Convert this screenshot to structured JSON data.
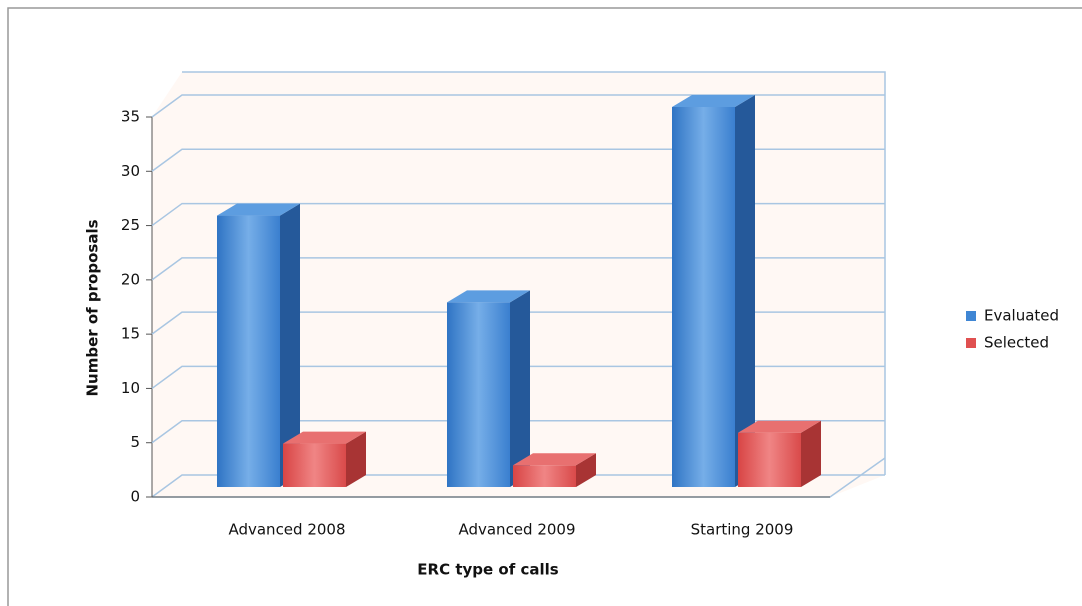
{
  "chart_data": {
    "type": "bar3d",
    "x_label": "ERC type of calls",
    "y_label": "Number of proposals",
    "categories": [
      "Advanced 2008",
      "Advanced 2009",
      "Starting 2009"
    ],
    "series": [
      {
        "name": "Evaluated",
        "color": "#3f86d4",
        "values": [
          25,
          17,
          35
        ]
      },
      {
        "name": "Selected",
        "color": "#e05050",
        "values": [
          4,
          2,
          5
        ]
      }
    ],
    "ylim": [
      0,
      35
    ],
    "yticks": [
      0,
      5,
      10,
      15,
      20,
      25,
      30,
      35
    ],
    "grid": true,
    "legend": "right"
  }
}
